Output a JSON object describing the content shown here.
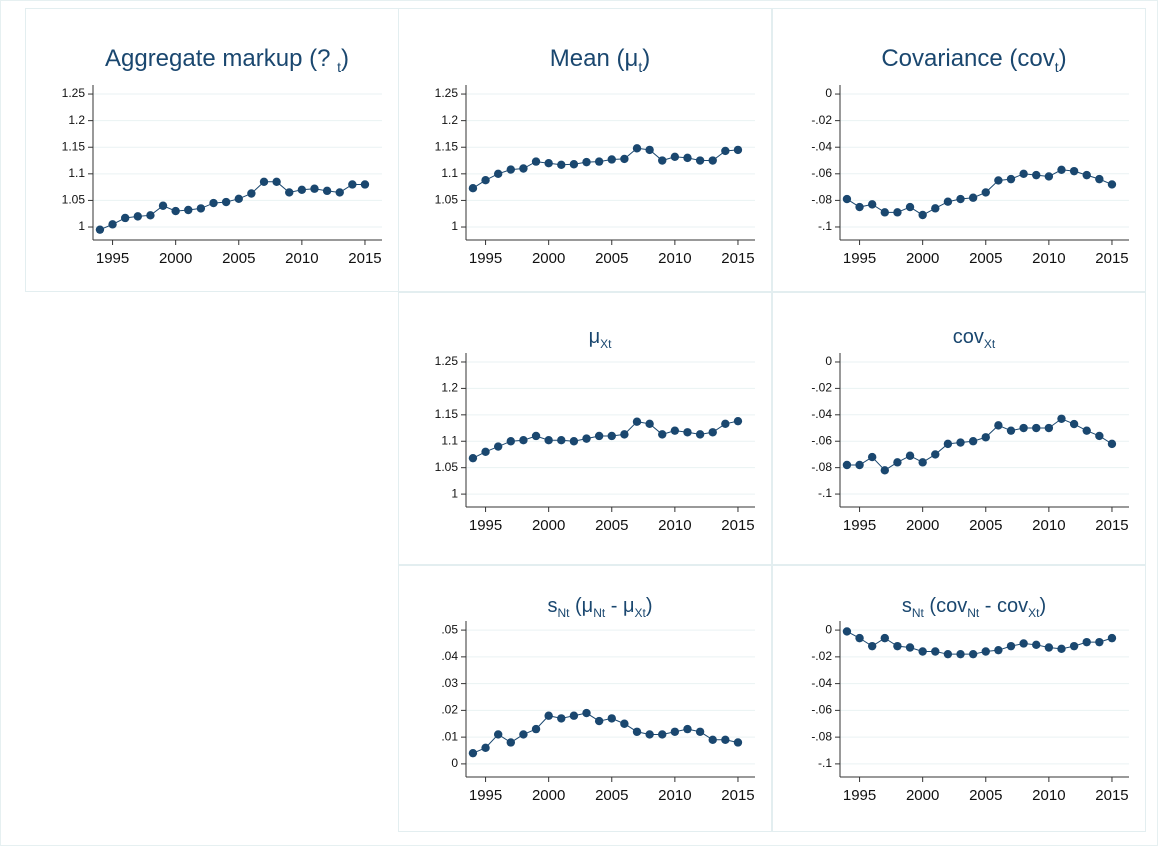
{
  "chart_data": [
    {
      "type": "line",
      "title": [
        {
          "text": "Aggregate markup (? "
        },
        {
          "text": "t",
          "sub": true
        },
        {
          "text": ")"
        }
      ],
      "x": [
        1994,
        1995,
        1996,
        1997,
        1998,
        1999,
        2000,
        2001,
        2002,
        2003,
        2004,
        2005,
        2006,
        2007,
        2008,
        2009,
        2010,
        2011,
        2012,
        2013,
        2014,
        2015
      ],
      "values": [
        0.995,
        1.005,
        1.017,
        1.02,
        1.022,
        1.04,
        1.03,
        1.032,
        1.035,
        1.045,
        1.047,
        1.053,
        1.063,
        1.085,
        1.085,
        1.065,
        1.07,
        1.072,
        1.068,
        1.065,
        1.08,
        1.08
      ],
      "color": "#1a476f",
      "xlim": [
        1993.45,
        2016.35
      ],
      "xticks": [
        1995,
        2000,
        2005,
        2010,
        2015
      ],
      "ylim": [
        0.9756,
        1.267
      ],
      "yticks": [
        1,
        1.05,
        1.1,
        1.15,
        1.2,
        1.25
      ],
      "grid": true
    },
    {
      "type": "line",
      "title": [
        {
          "text": "Mean (μ"
        },
        {
          "text": "t",
          "sub": true
        },
        {
          "text": ")"
        }
      ],
      "x": [
        1994,
        1995,
        1996,
        1997,
        1998,
        1999,
        2000,
        2001,
        2002,
        2003,
        2004,
        2005,
        2006,
        2007,
        2008,
        2009,
        2010,
        2011,
        2012,
        2013,
        2014,
        2015
      ],
      "values": [
        1.073,
        1.088,
        1.1,
        1.108,
        1.11,
        1.123,
        1.12,
        1.117,
        1.118,
        1.122,
        1.123,
        1.127,
        1.128,
        1.148,
        1.145,
        1.125,
        1.132,
        1.13,
        1.125,
        1.125,
        1.143,
        1.145
      ],
      "color": "#1a476f",
      "xlim": [
        1993.45,
        2016.35
      ],
      "xticks": [
        1995,
        2000,
        2005,
        2010,
        2015
      ],
      "ylim": [
        0.9756,
        1.267
      ],
      "yticks": [
        1,
        1.05,
        1.1,
        1.15,
        1.2,
        1.25
      ],
      "grid": true
    },
    {
      "type": "line",
      "title": [
        {
          "text": "Covariance (cov"
        },
        {
          "text": "t",
          "sub": true
        },
        {
          "text": ")"
        }
      ],
      "x": [
        1994,
        1995,
        1996,
        1997,
        1998,
        1999,
        2000,
        2001,
        2002,
        2003,
        2004,
        2005,
        2006,
        2007,
        2008,
        2009,
        2010,
        2011,
        2012,
        2013,
        2014,
        2015
      ],
      "values": [
        -0.079,
        -0.085,
        -0.083,
        -0.089,
        -0.089,
        -0.085,
        -0.091,
        -0.086,
        -0.081,
        -0.079,
        -0.078,
        -0.074,
        -0.065,
        -0.064,
        -0.06,
        -0.061,
        -0.062,
        -0.057,
        -0.058,
        -0.061,
        -0.064,
        -0.068
      ],
      "color": "#1a476f",
      "xlim": [
        1993.45,
        2016.35
      ],
      "xticks": [
        1995,
        2000,
        2005,
        2010,
        2015
      ],
      "ylim": [
        -0.1098,
        0.0068
      ],
      "yticks": [
        {
          "value": -0.1,
          "label": "-.1"
        },
        {
          "value": -0.08,
          "label": "-.08"
        },
        {
          "value": -0.06,
          "label": "-.06"
        },
        {
          "value": -0.04,
          "label": "-.04"
        },
        {
          "value": -0.02,
          "label": "-.02"
        },
        0
      ],
      "grid": true
    },
    {
      "type": "line",
      "title": [
        {
          "text": "μ"
        },
        {
          "text": "Xt",
          "sub": true
        }
      ],
      "x": [
        1994,
        1995,
        1996,
        1997,
        1998,
        1999,
        2000,
        2001,
        2002,
        2003,
        2004,
        2005,
        2006,
        2007,
        2008,
        2009,
        2010,
        2011,
        2012,
        2013,
        2014,
        2015
      ],
      "values": [
        1.068,
        1.08,
        1.09,
        1.1,
        1.102,
        1.11,
        1.102,
        1.102,
        1.1,
        1.105,
        1.11,
        1.11,
        1.113,
        1.137,
        1.133,
        1.113,
        1.12,
        1.117,
        1.113,
        1.117,
        1.133,
        1.138
      ],
      "color": "#1a476f",
      "xlim": [
        1993.45,
        2016.35
      ],
      "xticks": [
        1995,
        2000,
        2005,
        2010,
        2015
      ],
      "ylim": [
        0.9756,
        1.267
      ],
      "yticks": [
        1,
        1.05,
        1.1,
        1.15,
        1.2,
        1.25
      ],
      "grid": true
    },
    {
      "type": "line",
      "title": [
        {
          "text": "cov"
        },
        {
          "text": "Xt",
          "sub": true
        }
      ],
      "x": [
        1994,
        1995,
        1996,
        1997,
        1998,
        1999,
        2000,
        2001,
        2002,
        2003,
        2004,
        2005,
        2006,
        2007,
        2008,
        2009,
        2010,
        2011,
        2012,
        2013,
        2014,
        2015
      ],
      "values": [
        -0.078,
        -0.078,
        -0.072,
        -0.082,
        -0.076,
        -0.071,
        -0.076,
        -0.07,
        -0.062,
        -0.061,
        -0.06,
        -0.057,
        -0.048,
        -0.052,
        -0.05,
        -0.05,
        -0.05,
        -0.043,
        -0.047,
        -0.052,
        -0.056,
        -0.062
      ],
      "color": "#1a476f",
      "xlim": [
        1993.45,
        2016.35
      ],
      "xticks": [
        1995,
        2000,
        2005,
        2010,
        2015
      ],
      "ylim": [
        -0.1098,
        0.0068
      ],
      "yticks": [
        {
          "value": -0.1,
          "label": "-.1"
        },
        {
          "value": -0.08,
          "label": "-.08"
        },
        {
          "value": -0.06,
          "label": "-.06"
        },
        {
          "value": -0.04,
          "label": "-.04"
        },
        {
          "value": -0.02,
          "label": "-.02"
        },
        0
      ],
      "grid": true
    },
    {
      "type": "line",
      "title": [
        {
          "text": "s"
        },
        {
          "text": "Nt",
          "sub": true
        },
        {
          "text": " (μ"
        },
        {
          "text": "Nt",
          "sub": true
        },
        {
          "text": " - μ"
        },
        {
          "text": "Xt",
          "sub": true
        },
        {
          "text": ")"
        }
      ],
      "x": [
        1994,
        1995,
        1996,
        1997,
        1998,
        1999,
        2000,
        2001,
        2002,
        2003,
        2004,
        2005,
        2006,
        2007,
        2008,
        2009,
        2010,
        2011,
        2012,
        2013,
        2014,
        2015
      ],
      "values": [
        0.004,
        0.006,
        0.011,
        0.008,
        0.011,
        0.013,
        0.018,
        0.017,
        0.018,
        0.019,
        0.016,
        0.017,
        0.015,
        0.012,
        0.011,
        0.011,
        0.012,
        0.013,
        0.012,
        0.009,
        0.009,
        0.008
      ],
      "color": "#1a476f",
      "xlim": [
        1993.45,
        2016.35
      ],
      "xticks": [
        1995,
        2000,
        2005,
        2010,
        2015
      ],
      "ylim": [
        -0.0049,
        0.0534
      ],
      "yticks": [
        0,
        {
          "value": 0.01,
          "label": ".01"
        },
        {
          "value": 0.02,
          "label": ".02"
        },
        {
          "value": 0.03,
          "label": ".03"
        },
        {
          "value": 0.04,
          "label": ".04"
        },
        {
          "value": 0.05,
          "label": ".05"
        }
      ],
      "grid": true
    },
    {
      "type": "line",
      "title": [
        {
          "text": "s"
        },
        {
          "text": "Nt",
          "sub": true
        },
        {
          "text": " (cov"
        },
        {
          "text": "Nt",
          "sub": true
        },
        {
          "text": " - cov"
        },
        {
          "text": "Xt",
          "sub": true
        },
        {
          "text": ")"
        }
      ],
      "x": [
        1994,
        1995,
        1996,
        1997,
        1998,
        1999,
        2000,
        2001,
        2002,
        2003,
        2004,
        2005,
        2006,
        2007,
        2008,
        2009,
        2010,
        2011,
        2012,
        2013,
        2014,
        2015
      ],
      "values": [
        -0.001,
        -0.006,
        -0.012,
        -0.006,
        -0.012,
        -0.013,
        -0.016,
        -0.016,
        -0.018,
        -0.018,
        -0.018,
        -0.016,
        -0.015,
        -0.012,
        -0.01,
        -0.011,
        -0.013,
        -0.014,
        -0.012,
        -0.009,
        -0.009,
        -0.006
      ],
      "color": "#1a476f",
      "xlim": [
        1993.45,
        2016.35
      ],
      "xticks": [
        1995,
        2000,
        2005,
        2010,
        2015
      ],
      "ylim": [
        -0.1098,
        0.0068
      ],
      "yticks": [
        {
          "value": -0.1,
          "label": "-.1"
        },
        {
          "value": -0.08,
          "label": "-.08"
        },
        {
          "value": -0.06,
          "label": "-.06"
        },
        {
          "value": -0.04,
          "label": "-.04"
        },
        {
          "value": -0.02,
          "label": "-.02"
        },
        0
      ],
      "grid": true
    }
  ]
}
